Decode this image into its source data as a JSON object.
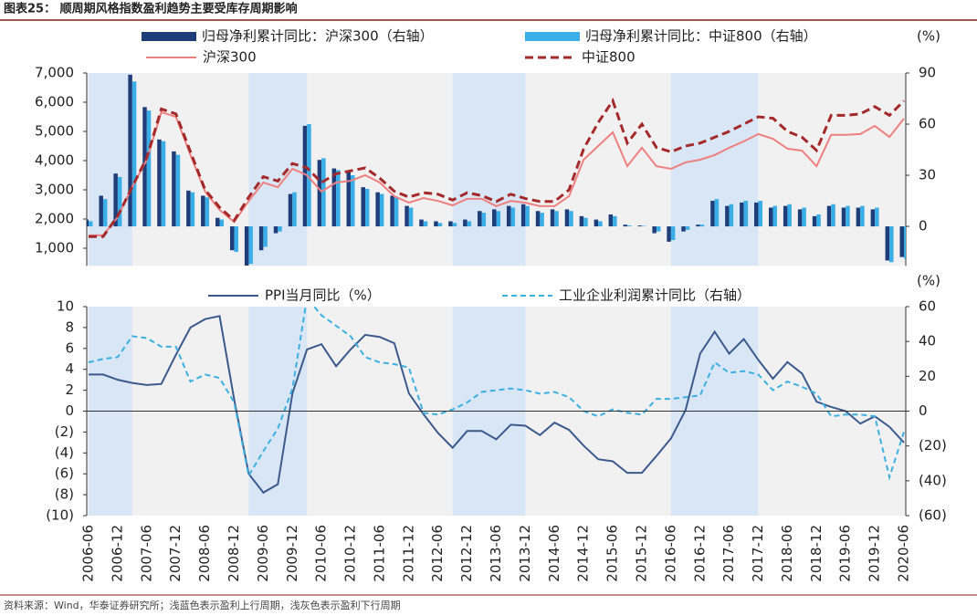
{
  "title": "图表25： 顺周期风格指数盈利趋势主要受库存周期影响",
  "source": "资料来源：Wind，华泰证券研究所；浅蓝色表示盈利上行周期，浅灰色表示盈利下行周期",
  "chart_data": [
    {
      "type": "combo",
      "ylim": [
        400,
        7000
      ],
      "yticks": [
        {
          "value": 1000,
          "label": "1,000"
        },
        {
          "value": 2000,
          "label": "2,000"
        },
        {
          "value": 3000,
          "label": "3,000"
        },
        {
          "value": 4000,
          "label": "4,000"
        },
        {
          "value": 5000,
          "label": "5,000"
        },
        {
          "value": 6000,
          "label": "6,000"
        },
        {
          "value": 7000,
          "label": "7,000"
        }
      ],
      "y2lim": [
        -23.1,
        90
      ],
      "y2ticks": [
        0,
        30,
        60,
        90
      ],
      "y2_unit": "(%)",
      "shaded_ranges": [
        [
          0,
          3
        ],
        [
          11,
          15
        ],
        [
          25,
          30
        ],
        [
          40,
          46
        ]
      ],
      "series": [
        {
          "name": "归母净利累计同比：沪深300（右轴）",
          "kind": "bar",
          "axis": "y2",
          "color": "#1f3d78",
          "values": [
            4,
            18,
            31,
            89,
            70,
            51,
            44,
            21,
            18,
            5,
            -14,
            -23,
            -14,
            -4,
            19,
            59,
            39,
            34,
            32,
            23,
            20,
            18,
            12,
            4,
            3,
            3,
            4,
            9,
            10,
            12,
            13,
            9,
            10,
            10,
            6,
            4,
            7,
            1,
            0.5,
            -4,
            -9,
            -3,
            1,
            15,
            12,
            14,
            14,
            11,
            12,
            10,
            6,
            12,
            11,
            11,
            10,
            -20,
            -18
          ]
        },
        {
          "name": "归母净利累计同比：中证800（右轴）",
          "kind": "bar",
          "axis": "y2",
          "color": "#3aaee6",
          "values": [
            3,
            16,
            29,
            85,
            68,
            50,
            42,
            20,
            17,
            4,
            -15,
            -22,
            -12,
            -3,
            20,
            60,
            40,
            33,
            30,
            22,
            19,
            17,
            11,
            3,
            2,
            2,
            3,
            8,
            9,
            11,
            12,
            8,
            9,
            9,
            5,
            3,
            6,
            0.5,
            0.3,
            -3,
            -8,
            -2,
            1,
            16,
            13,
            15,
            15,
            12,
            13,
            11,
            7,
            13,
            12,
            12,
            11,
            -21,
            -19
          ]
        },
        {
          "name": "沪深300",
          "kind": "line",
          "color": "#ee8080",
          "values": [
            1440,
            1440,
            2060,
            3100,
            4030,
            5660,
            5500,
            4190,
            2940,
            2310,
            1900,
            2620,
            3250,
            3090,
            3720,
            3500,
            2940,
            3250,
            3310,
            3500,
            3250,
            2780,
            2560,
            2720,
            2620,
            2470,
            2690,
            2690,
            2440,
            2620,
            2560,
            2440,
            2440,
            2780,
            4030,
            4500,
            4970,
            3810,
            4440,
            3810,
            3720,
            3940,
            4030,
            4190,
            4440,
            4660,
            4910,
            4750,
            4410,
            4340,
            3810,
            4880,
            4880,
            4910,
            5190,
            4810,
            5440
          ]
        },
        {
          "name": "中证800",
          "kind": "line",
          "dash": true,
          "color": "#a3292b",
          "values": [
            1400,
            1400,
            2100,
            3100,
            4100,
            5770,
            5600,
            4300,
            3000,
            2400,
            1950,
            2750,
            3450,
            3300,
            3900,
            3750,
            3250,
            3550,
            3650,
            3750,
            3400,
            2950,
            2750,
            2900,
            2850,
            2650,
            2900,
            2800,
            2600,
            2850,
            2700,
            2600,
            2600,
            3000,
            4400,
            5300,
            6050,
            4600,
            5250,
            4450,
            4300,
            4500,
            4600,
            4800,
            5000,
            5250,
            5500,
            5450,
            5000,
            4800,
            4350,
            5550,
            5550,
            5600,
            5850,
            5550,
            6050
          ]
        }
      ]
    },
    {
      "type": "line",
      "ylim": [
        -10,
        10
      ],
      "yticks": [
        {
          "value": -10,
          "label": "(10)"
        },
        {
          "value": -8,
          "label": "(8)"
        },
        {
          "value": -6,
          "label": "(6)"
        },
        {
          "value": -4,
          "label": "(4)"
        },
        {
          "value": -2,
          "label": "(2)"
        },
        0,
        2,
        4,
        6,
        8,
        10
      ],
      "y2lim": [
        -60,
        60
      ],
      "y2ticks": [
        {
          "value": -60,
          "label": "(60)"
        },
        {
          "value": -40,
          "label": "(40)"
        },
        {
          "value": -20,
          "label": "(20)"
        },
        0,
        20,
        40,
        60
      ],
      "y2_unit": "(%)",
      "categories": [
        "2006-06",
        null,
        "2006-12",
        null,
        "2007-06",
        null,
        "2007-12",
        null,
        "2008-06",
        null,
        "2008-12",
        null,
        "2009-06",
        null,
        "2009-12",
        null,
        "2010-06",
        null,
        "2010-12",
        null,
        "2011-06",
        null,
        "2011-12",
        null,
        "2012-06",
        null,
        "2012-12",
        null,
        "2013-06",
        null,
        "2013-12",
        null,
        "2014-06",
        null,
        "2014-12",
        null,
        "2015-06",
        null,
        "2015-12",
        null,
        "2016-06",
        null,
        "2016-12",
        null,
        "2017-06",
        null,
        "2017-12",
        null,
        "2018-06",
        null,
        "2018-12",
        null,
        "2019-06",
        null,
        "2019-12",
        null,
        "2020-06"
      ],
      "series": [
        {
          "name": "PPI当月同比（%）",
          "color": "#3c5a8c",
          "values": [
            3.5,
            3.5,
            3.0,
            2.7,
            2.5,
            2.6,
            5.4,
            8.0,
            8.8,
            9.1,
            1.1,
            -6.0,
            -7.8,
            -7.0,
            1.7,
            5.9,
            6.4,
            4.3,
            5.9,
            7.3,
            7.1,
            6.5,
            1.7,
            -0.3,
            -2.1,
            -3.5,
            -1.9,
            -1.9,
            -2.7,
            -1.3,
            -1.4,
            -2.3,
            -1.1,
            -1.8,
            -3.3,
            -4.6,
            -4.8,
            -5.9,
            -5.9,
            -4.3,
            -2.6,
            0.1,
            5.5,
            7.6,
            5.5,
            6.9,
            4.9,
            3.1,
            4.7,
            3.6,
            0.9,
            0.4,
            0.0,
            -1.2,
            -0.5,
            -1.5,
            -3.0
          ]
        },
        {
          "name": "工业企业利润累计同比（右轴）",
          "axis": "y2",
          "dash": true,
          "color": "#3cb0e0",
          "values": [
            28,
            30,
            31,
            43,
            42,
            37,
            37,
            17,
            21,
            19,
            5,
            -37,
            -23,
            -10,
            13,
            65,
            55,
            49,
            43,
            31,
            28,
            27,
            25,
            -1,
            -2,
            1,
            5,
            11,
            12,
            13,
            12,
            10,
            11,
            8,
            0,
            -3,
            1,
            -1,
            -2,
            7,
            7,
            8,
            9,
            28,
            22,
            23,
            21,
            12,
            17,
            14,
            10,
            -3,
            -2,
            -2,
            -3,
            -38,
            -12
          ]
        }
      ]
    }
  ]
}
